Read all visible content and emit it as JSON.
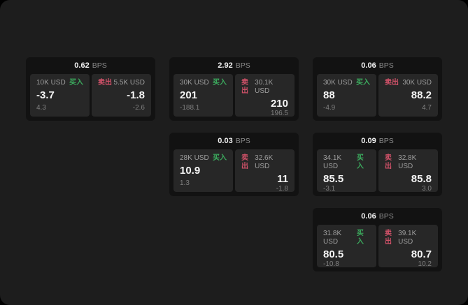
{
  "labels": {
    "bps": "BPS",
    "buy": "买入",
    "sell": "卖出"
  },
  "colors": {
    "page_background": "#1d1d1d",
    "card_background": "#121212",
    "panel_background": "#272727",
    "buy_accent": "#3cab5e",
    "sell_accent": "#cf5168"
  },
  "cards": [
    {
      "bps": "0.62",
      "buy": {
        "amount": "10K USD",
        "price": "-3.7",
        "sub": "4.3"
      },
      "sell": {
        "amount": "5.5K USD",
        "price": "-1.8",
        "sub": "-2.6"
      }
    },
    {
      "bps": "2.92",
      "buy": {
        "amount": "30K USD",
        "price": "201",
        "sub": "-188.1"
      },
      "sell": {
        "amount": "30.1K USD",
        "price": "210",
        "sub": "196.5"
      }
    },
    {
      "bps": "0.06",
      "buy": {
        "amount": "30K USD",
        "price": "88",
        "sub": "-4.9"
      },
      "sell": {
        "amount": "30K USD",
        "price": "88.2",
        "sub": "4.7"
      }
    },
    {
      "bps": "0.03",
      "buy": {
        "amount": "28K USD",
        "price": "10.9",
        "sub": "1.3"
      },
      "sell": {
        "amount": "32.6K USD",
        "price": "11",
        "sub": "-1.8"
      }
    },
    {
      "bps": "0.09",
      "buy": {
        "amount": "34.1K USD",
        "price": "85.5",
        "sub": "-3.1"
      },
      "sell": {
        "amount": "32.8K USD",
        "price": "85.8",
        "sub": "3.0"
      }
    },
    {
      "bps": "0.06",
      "buy": {
        "amount": "31.8K USD",
        "price": "80.5",
        "sub": "-10.8"
      },
      "sell": {
        "amount": "39.1K USD",
        "price": "80.7",
        "sub": "10.2"
      }
    }
  ]
}
